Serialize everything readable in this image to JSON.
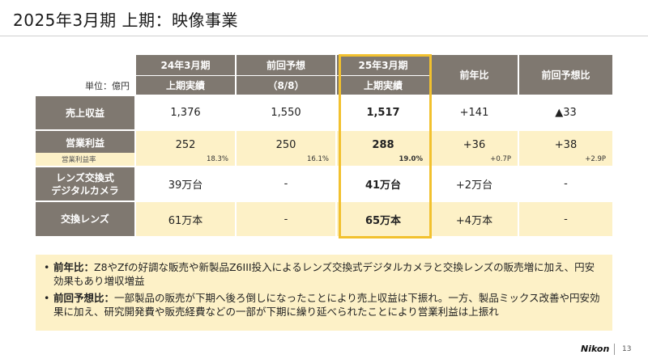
{
  "title": "2025年3月期 上期：映像事業",
  "unit_label": "単位：億円",
  "columns": [
    {
      "line1": "24年3月期",
      "line2": "上期実績"
    },
    {
      "line1": "前回予想",
      "line2": "（8/8）"
    },
    {
      "line1": "25年3月期",
      "line2": "上期実績"
    },
    {
      "line1": "前年比"
    },
    {
      "line1": "前回予想比"
    }
  ],
  "rows": {
    "sales": {
      "label": "売上収益",
      "values": [
        "1,376",
        "1,550",
        "1,517",
        "+141",
        "▲33"
      ]
    },
    "operating_profit": {
      "label": "営業利益",
      "values": [
        "252",
        "250",
        "288",
        "+36",
        "+38"
      ]
    },
    "operating_margin": {
      "label": "営業利益率",
      "values": [
        "18.3%",
        "16.1%",
        "19.0%",
        "+0.7P",
        "+2.9P"
      ]
    },
    "ilc": {
      "label_line1": "レンズ交換式",
      "label_line2": "デジタルカメラ",
      "values": [
        "39万台",
        "-",
        "41万台",
        "+2万台",
        "-"
      ]
    },
    "lenses": {
      "label": "交換レンズ",
      "values": [
        "61万本",
        "-",
        "65万本",
        "+4万本",
        "-"
      ]
    }
  },
  "notes": [
    {
      "bullet": "•",
      "label": "前年比：",
      "text": "Z8やZfの好調な販売や新製品Z6III投入によるレンズ交換式デジタルカメラと交換レンズの販売増に加え、円安効果もあり増収増益"
    },
    {
      "bullet": "•",
      "label": "前回予想比：",
      "text": "一部製品の販売が下期へ後ろ倒しになったことにより売上収益は下振れ。一方、製品ミックス改善や円安効果に加え、研究開発費や販売経費などの一部が下期に繰り延べられたことにより営業利益は上振れ"
    }
  ],
  "footer": {
    "logo": "Nikon",
    "page": "13"
  },
  "colors": {
    "header_bg": "#7f7870",
    "highlight_row": "#fdf1c7",
    "highlight_border": "#f2c12e"
  }
}
